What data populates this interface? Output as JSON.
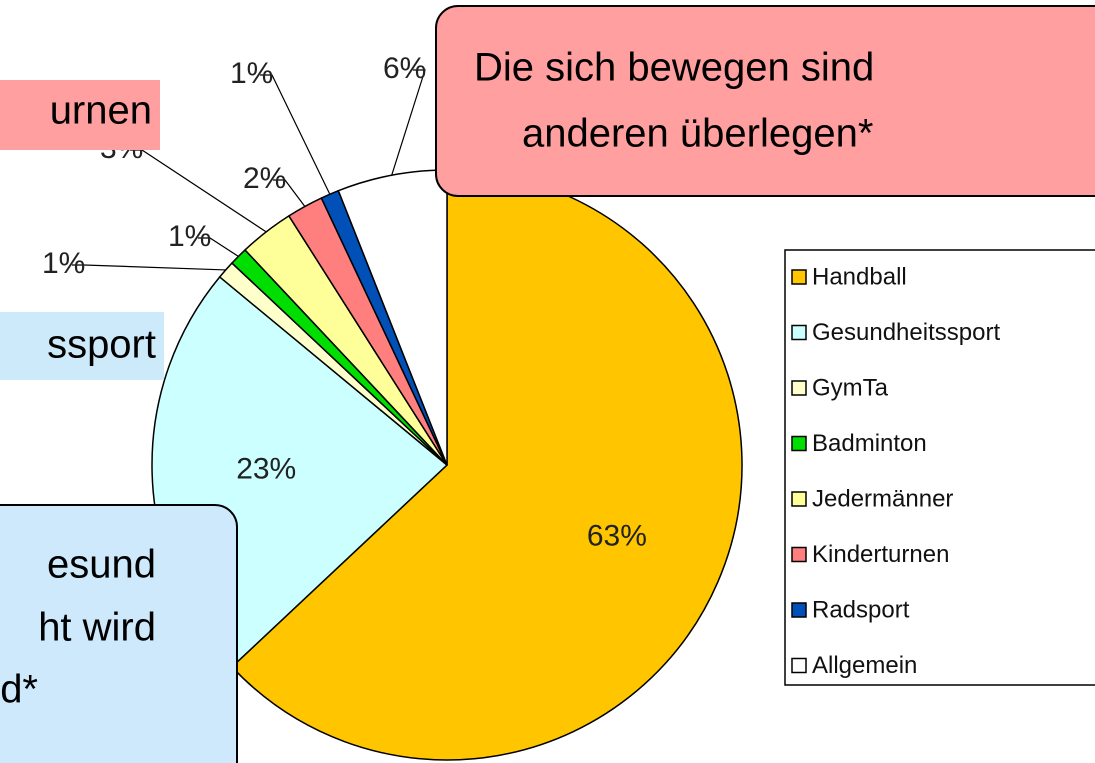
{
  "chart_data": {
    "type": "pie",
    "categories": [
      "Handball",
      "Gesundheitssport",
      "GymTa",
      "Badminton",
      "Jedermänner",
      "Kinderturnen",
      "Radsport",
      "Allgemein"
    ],
    "values": [
      63,
      23,
      1,
      1,
      3,
      2,
      1,
      6
    ],
    "value_labels": [
      "63%",
      "23%",
      "1%",
      "1%",
      "3%",
      "2%",
      "1%",
      "6%"
    ],
    "colors": [
      "#ffc600",
      "#ccffff",
      "#ffffcc",
      "#00dd00",
      "#ffff99",
      "#ff7f7f",
      "#0050b8",
      "#ffffff"
    ],
    "legend": "right",
    "annotations": [
      "urnen",
      "ssport",
      "esund",
      "ht wird",
      "d*",
      "Die sich bewegen sind",
      "anderen überlegen*"
    ]
  }
}
